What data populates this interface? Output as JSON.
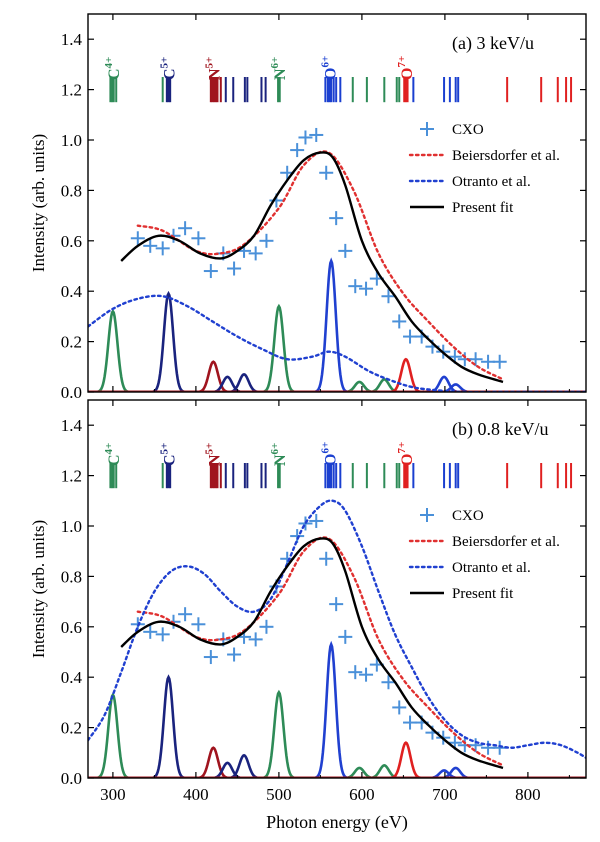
{
  "chart_data": [
    {
      "type": "line",
      "panel_label": "(a) 3 keV/u",
      "ylabel": "Intensity (arb. units)",
      "xlabel": "",
      "xlim": [
        270,
        870
      ],
      "ylim": [
        0,
        1.5
      ],
      "x_ticks": [
        300,
        400,
        500,
        600,
        700,
        800
      ],
      "x_tick_labels": [
        "",
        "",
        "",
        "",
        "",
        ""
      ],
      "y_ticks": [
        0.0,
        0.2,
        0.4,
        0.6,
        0.8,
        1.0,
        1.2,
        1.4
      ],
      "y_tick_labels": [
        "0.0",
        "0.2",
        "0.4",
        "0.6",
        "0.8",
        "1.0",
        "1.2",
        "1.4"
      ],
      "ion_labels": [
        {
          "text": "C",
          "sup": "4+",
          "x": 300,
          "color": "#2e8b57"
        },
        {
          "text": "C",
          "sup": "5+",
          "x": 367,
          "color": "#1a237e"
        },
        {
          "text": "N",
          "sup": "5+",
          "x": 421,
          "color": "#a0141e"
        },
        {
          "text": "N",
          "sup": "6+",
          "x": 500,
          "color": "#2e8b57"
        },
        {
          "text": "O",
          "sup": "6+",
          "x": 561,
          "color": "#1a3fd0"
        },
        {
          "text": "O",
          "sup": "7+",
          "x": 653,
          "color": "#e02020"
        }
      ],
      "line_groups": [
        {
          "color": "#2e8b57",
          "x": [
            297,
            299,
            301,
            304,
            360,
            499,
            501,
            589,
            606,
            627,
            642,
            645
          ]
        },
        {
          "color": "#1a237e",
          "x": [
            365,
            367,
            369,
            436,
            445,
            459,
            462,
            479,
            484
          ]
        },
        {
          "color": "#a0141e",
          "x": [
            418,
            420,
            422,
            424,
            426,
            430
          ]
        },
        {
          "color": "#1a3fd0",
          "x": [
            556,
            559,
            561,
            563,
            566,
            569,
            574,
            662,
            699,
            706,
            713,
            716
          ]
        },
        {
          "color": "#e02020",
          "x": [
            651,
            653,
            655,
            775,
            816,
            836,
            846,
            852
          ]
        }
      ],
      "line_y_range": [
        1.15,
        1.25
      ],
      "peak_colors": [
        "#2e8b57",
        "#1a237e",
        "#a0141e",
        "#2040d0",
        "#e02020"
      ],
      "series": [
        {
          "name": "CXO",
          "kind": "markers",
          "color": "#4a90d9",
          "x": [
            330,
            345,
            360,
            373,
            387,
            403,
            418,
            433,
            446,
            458,
            472,
            485,
            497,
            510,
            522,
            532,
            545,
            557,
            569,
            580,
            592,
            605,
            618,
            632,
            645,
            658,
            672,
            685,
            698,
            712,
            724,
            737,
            752,
            766
          ],
          "y": [
            0.61,
            0.58,
            0.57,
            0.62,
            0.65,
            0.61,
            0.48,
            0.55,
            0.49,
            0.56,
            0.55,
            0.6,
            0.76,
            0.87,
            0.96,
            1.01,
            1.02,
            0.87,
            0.69,
            0.56,
            0.42,
            0.41,
            0.45,
            0.38,
            0.28,
            0.22,
            0.22,
            0.18,
            0.16,
            0.14,
            0.13,
            0.13,
            0.12,
            0.12
          ]
        },
        {
          "name": "Beiersdorfer et al.",
          "kind": "dotted",
          "color": "#e03030",
          "x": [
            330,
            360,
            400,
            430,
            460,
            500,
            530,
            560,
            590,
            620,
            650,
            680,
            710,
            740,
            770
          ],
          "y": [
            0.66,
            0.64,
            0.56,
            0.55,
            0.59,
            0.73,
            0.9,
            0.95,
            0.8,
            0.55,
            0.39,
            0.28,
            0.18,
            0.1,
            0.05
          ]
        },
        {
          "name": "Otranto et al.",
          "kind": "dotted",
          "color": "#2040d0",
          "x": [
            270,
            300,
            330,
            360,
            390,
            420,
            450,
            480,
            510,
            540,
            560,
            580,
            610,
            640,
            660,
            680,
            720,
            760,
            800,
            840,
            870
          ],
          "y": [
            0.26,
            0.33,
            0.37,
            0.38,
            0.34,
            0.28,
            0.22,
            0.17,
            0.13,
            0.14,
            0.16,
            0.14,
            0.08,
            0.04,
            0.02,
            0.01,
            0.0,
            0.0,
            0.0,
            0.0,
            0.0
          ]
        },
        {
          "name": "Present fit",
          "kind": "solid",
          "color": "#000000",
          "x": [
            310,
            330,
            355,
            380,
            405,
            430,
            450,
            470,
            490,
            510,
            530,
            550,
            565,
            580,
            600,
            620,
            640,
            660,
            680,
            700,
            720,
            740,
            770
          ],
          "y": [
            0.52,
            0.58,
            0.62,
            0.6,
            0.55,
            0.53,
            0.56,
            0.62,
            0.74,
            0.84,
            0.92,
            0.95,
            0.93,
            0.82,
            0.6,
            0.47,
            0.38,
            0.28,
            0.21,
            0.15,
            0.1,
            0.07,
            0.04
          ]
        },
        {
          "name": "",
          "kind": "peaks",
          "peaks": [
            {
              "x": 300,
              "y": 0.32,
              "color": "#2e8b57"
            },
            {
              "x": 367,
              "y": 0.39,
              "color": "#1a237e"
            },
            {
              "x": 421,
              "y": 0.12,
              "color": "#a0141e"
            },
            {
              "x": 438,
              "y": 0.06,
              "color": "#1a237e"
            },
            {
              "x": 458,
              "y": 0.07,
              "color": "#1a237e"
            },
            {
              "x": 500,
              "y": 0.34,
              "color": "#2e8b57"
            },
            {
              "x": 563,
              "y": 0.52,
              "color": "#2040d0"
            },
            {
              "x": 597,
              "y": 0.04,
              "color": "#2e8b57"
            },
            {
              "x": 627,
              "y": 0.05,
              "color": "#2e8b57"
            },
            {
              "x": 653,
              "y": 0.13,
              "color": "#e02020"
            },
            {
              "x": 699,
              "y": 0.06,
              "color": "#2040d0"
            },
            {
              "x": 713,
              "y": 0.03,
              "color": "#2040d0"
            }
          ]
        }
      ],
      "legend": {
        "placement": "right",
        "entries": [
          "CXO",
          "Beiersdorfer et al.",
          "Otranto et al.",
          "Present fit"
        ]
      }
    },
    {
      "type": "line",
      "panel_label": "(b) 0.8 keV/u",
      "ylabel": "Intensity (arb. units)",
      "xlabel": "Photon energy (eV)",
      "xlim": [
        270,
        870
      ],
      "ylim": [
        0,
        1.5
      ],
      "x_ticks": [
        300,
        400,
        500,
        600,
        700,
        800
      ],
      "x_tick_labels": [
        "300",
        "400",
        "500",
        "600",
        "700",
        "800"
      ],
      "y_ticks": [
        0.0,
        0.2,
        0.4,
        0.6,
        0.8,
        1.0,
        1.2,
        1.4
      ],
      "y_tick_labels": [
        "0.0",
        "0.2",
        "0.4",
        "0.6",
        "0.8",
        "1.0",
        "1.2",
        "1.4"
      ],
      "ion_labels": [
        {
          "text": "C",
          "sup": "4+",
          "x": 300,
          "color": "#2e8b57"
        },
        {
          "text": "C",
          "sup": "5+",
          "x": 367,
          "color": "#1a237e"
        },
        {
          "text": "N",
          "sup": "5+",
          "x": 421,
          "color": "#a0141e"
        },
        {
          "text": "N",
          "sup": "6+",
          "x": 500,
          "color": "#2e8b57"
        },
        {
          "text": "O",
          "sup": "6+",
          "x": 561,
          "color": "#1a3fd0"
        },
        {
          "text": "O",
          "sup": "7+",
          "x": 653,
          "color": "#e02020"
        }
      ],
      "line_groups": [
        {
          "color": "#2e8b57",
          "x": [
            297,
            299,
            301,
            304,
            360,
            499,
            501,
            589,
            606,
            627,
            642,
            645
          ]
        },
        {
          "color": "#1a237e",
          "x": [
            365,
            367,
            369,
            436,
            445,
            459,
            462,
            479,
            484
          ]
        },
        {
          "color": "#a0141e",
          "x": [
            418,
            420,
            422,
            424,
            426,
            430
          ]
        },
        {
          "color": "#1a3fd0",
          "x": [
            556,
            559,
            561,
            563,
            566,
            569,
            574,
            662,
            699,
            706,
            713,
            716
          ]
        },
        {
          "color": "#e02020",
          "x": [
            651,
            653,
            655,
            775,
            816,
            836,
            846,
            852
          ]
        }
      ],
      "line_y_range": [
        1.15,
        1.25
      ],
      "peak_colors": [
        "#2e8b57",
        "#1a237e",
        "#a0141e",
        "#2040d0",
        "#e02020"
      ],
      "series": [
        {
          "name": "CXO",
          "kind": "markers",
          "color": "#4a90d9",
          "x": [
            330,
            345,
            360,
            373,
            387,
            403,
            418,
            433,
            446,
            458,
            472,
            485,
            497,
            510,
            522,
            532,
            545,
            557,
            569,
            580,
            592,
            605,
            618,
            632,
            645,
            658,
            672,
            685,
            698,
            712,
            724,
            737,
            752,
            766
          ],
          "y": [
            0.61,
            0.58,
            0.57,
            0.62,
            0.65,
            0.61,
            0.48,
            0.55,
            0.49,
            0.56,
            0.55,
            0.6,
            0.76,
            0.87,
            0.96,
            1.01,
            1.02,
            0.87,
            0.69,
            0.56,
            0.42,
            0.41,
            0.45,
            0.38,
            0.28,
            0.22,
            0.22,
            0.18,
            0.16,
            0.14,
            0.13,
            0.13,
            0.12,
            0.12
          ]
        },
        {
          "name": "Beiersdorfer et al.",
          "kind": "dotted",
          "color": "#e03030",
          "x": [
            330,
            360,
            400,
            430,
            460,
            500,
            530,
            560,
            590,
            620,
            650,
            680,
            710,
            740,
            770
          ],
          "y": [
            0.66,
            0.64,
            0.56,
            0.55,
            0.59,
            0.73,
            0.9,
            0.95,
            0.8,
            0.55,
            0.39,
            0.28,
            0.18,
            0.1,
            0.05
          ]
        },
        {
          "name": "Otranto et al.",
          "kind": "dotted",
          "color": "#2040d0",
          "x": [
            270,
            290,
            310,
            330,
            350,
            370,
            390,
            410,
            430,
            450,
            470,
            490,
            510,
            530,
            550,
            565,
            580,
            600,
            620,
            640,
            660,
            680,
            700,
            720,
            740,
            760,
            780,
            800,
            820,
            840,
            860,
            870
          ],
          "y": [
            0.15,
            0.25,
            0.42,
            0.6,
            0.74,
            0.82,
            0.84,
            0.81,
            0.74,
            0.68,
            0.66,
            0.71,
            0.85,
            1.0,
            1.08,
            1.1,
            1.06,
            0.92,
            0.74,
            0.57,
            0.44,
            0.32,
            0.23,
            0.17,
            0.14,
            0.13,
            0.12,
            0.13,
            0.14,
            0.13,
            0.1,
            0.08
          ]
        },
        {
          "name": "Present fit",
          "kind": "solid",
          "color": "#000000",
          "x": [
            310,
            330,
            355,
            380,
            405,
            430,
            450,
            470,
            490,
            510,
            530,
            550,
            565,
            580,
            600,
            620,
            640,
            660,
            680,
            700,
            720,
            740,
            770
          ],
          "y": [
            0.52,
            0.58,
            0.62,
            0.6,
            0.55,
            0.53,
            0.56,
            0.62,
            0.74,
            0.84,
            0.92,
            0.95,
            0.93,
            0.82,
            0.6,
            0.47,
            0.38,
            0.28,
            0.21,
            0.15,
            0.1,
            0.07,
            0.04
          ]
        },
        {
          "name": "",
          "kind": "peaks",
          "peaks": [
            {
              "x": 300,
              "y": 0.33,
              "color": "#2e8b57"
            },
            {
              "x": 367,
              "y": 0.4,
              "color": "#1a237e"
            },
            {
              "x": 421,
              "y": 0.12,
              "color": "#a0141e"
            },
            {
              "x": 438,
              "y": 0.06,
              "color": "#1a237e"
            },
            {
              "x": 458,
              "y": 0.09,
              "color": "#1a237e"
            },
            {
              "x": 500,
              "y": 0.34,
              "color": "#2e8b57"
            },
            {
              "x": 563,
              "y": 0.53,
              "color": "#2040d0"
            },
            {
              "x": 597,
              "y": 0.04,
              "color": "#2e8b57"
            },
            {
              "x": 627,
              "y": 0.05,
              "color": "#2e8b57"
            },
            {
              "x": 653,
              "y": 0.14,
              "color": "#e02020"
            },
            {
              "x": 699,
              "y": 0.03,
              "color": "#2040d0"
            },
            {
              "x": 713,
              "y": 0.04,
              "color": "#2040d0"
            }
          ]
        }
      ],
      "legend": {
        "placement": "right",
        "entries": [
          "CXO",
          "Beiersdorfer et al.",
          "Otranto et al.",
          "Present fit"
        ]
      }
    }
  ]
}
